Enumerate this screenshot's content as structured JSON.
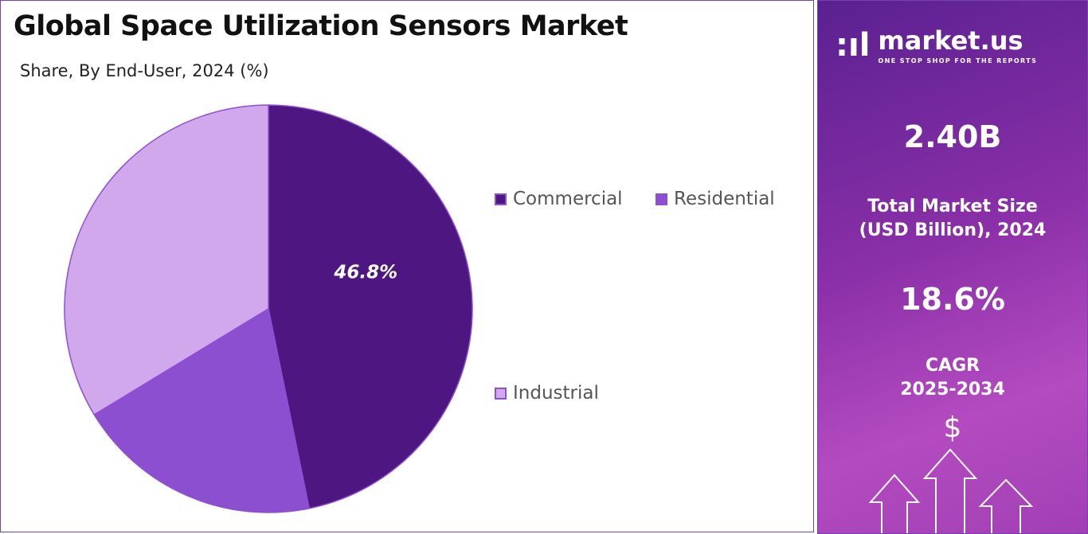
{
  "chart_data": {
    "type": "pie",
    "title": "Global Space Utilization Sensors Market",
    "subtitle": "Share, By End-User, 2024 (%)",
    "categories": [
      "Commercial",
      "Residential",
      "Industrial"
    ],
    "values": [
      46.8,
      19.5,
      33.7
    ],
    "data_labels": [
      "46.8%",
      "",
      ""
    ],
    "colors": [
      "#4e1680",
      "#8c4fd0",
      "#d2a8ec"
    ],
    "legend_placement": "right"
  },
  "sidebar": {
    "logo_name": "market.us",
    "logo_tagline": "ONE STOP SHOP FOR THE REPORTS",
    "market_size": "2.40B",
    "market_size_label_1": "Total Market Size",
    "market_size_label_2": "(USD Billion), 2024",
    "cagr": "18.6%",
    "cagr_label_1": "CAGR",
    "cagr_label_2": "2025-2034",
    "dollar_symbol": "$"
  }
}
